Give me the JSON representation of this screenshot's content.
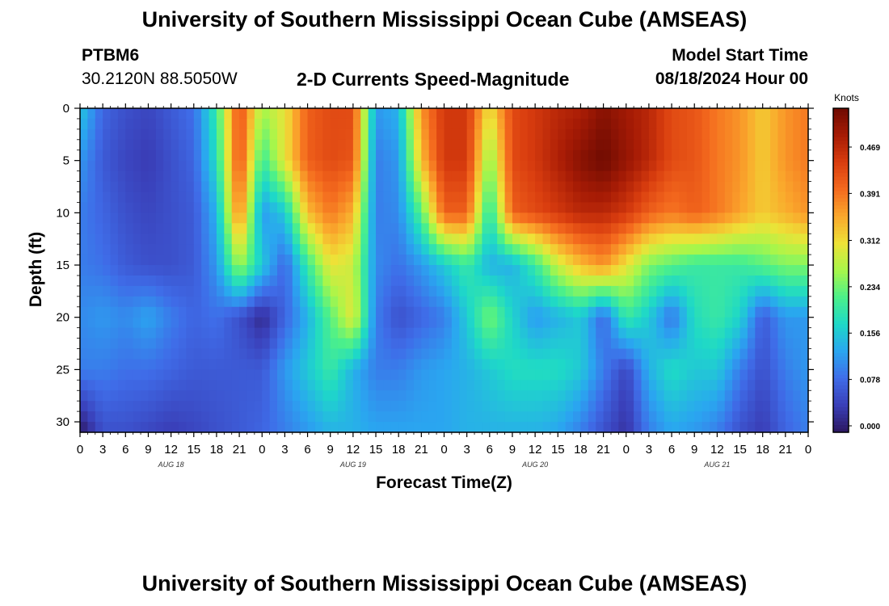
{
  "page": {
    "title": "University of Southern Mississippi Ocean Cube (AMSEAS)",
    "bottom_title": "University of Southern Mississippi Ocean Cube (AMSEAS)",
    "station": "PTBM6",
    "coordinates": "30.2120N  88.5050W",
    "subtitle": "2-D Currents Speed-Magnitude",
    "model_start_label": "Model Start Time",
    "model_start_value": "08/18/2024 Hour 00"
  },
  "chart_data": {
    "type": "heatmap",
    "title": "2-D Currents Speed-Magnitude",
    "xlabel": "Forecast Time(Z)",
    "ylabel": "Depth (ft)",
    "xlim": [
      0,
      96
    ],
    "ylim": [
      31,
      0
    ],
    "x_tick_hours": [
      0,
      3,
      6,
      9,
      12,
      15,
      18,
      21,
      24,
      27,
      30,
      33,
      36,
      39,
      42,
      45,
      48,
      51,
      54,
      57,
      60,
      63,
      66,
      69,
      72,
      75,
      78,
      81,
      84,
      87,
      90,
      93,
      96
    ],
    "x_tick_labels": [
      "0",
      "3",
      "6",
      "9",
      "12",
      "15",
      "18",
      "21",
      "0",
      "3",
      "6",
      "9",
      "12",
      "15",
      "18",
      "21",
      "0",
      "3",
      "6",
      "9",
      "12",
      "15",
      "18",
      "21",
      "0",
      "3",
      "6",
      "9",
      "12",
      "15",
      "18",
      "21",
      "0"
    ],
    "day_labels": [
      {
        "hour": 12,
        "label": "AUG 18"
      },
      {
        "hour": 36,
        "label": "AUG 19"
      },
      {
        "hour": 60,
        "label": "AUG 20"
      },
      {
        "hour": 84,
        "label": "AUG 21"
      }
    ],
    "y_ticks": [
      0,
      5,
      10,
      15,
      20,
      25,
      30
    ],
    "colorbar": {
      "unit": "Knots",
      "min": 0.0,
      "max": 0.52,
      "tick_values": [
        0.0,
        0.078,
        0.156,
        0.234,
        0.312,
        0.391,
        0.469
      ],
      "tick_labels": [
        "0.000",
        "0.078",
        "0.156",
        "0.234",
        "0.312",
        "0.391",
        "0.469"
      ],
      "colors": [
        "#2c1760",
        "#3a3fb8",
        "#3f6ce8",
        "#2aa6f0",
        "#1ed8c8",
        "#4cf08a",
        "#a8f64a",
        "#eee237",
        "#faa72c",
        "#f46a1e",
        "#d93d0f",
        "#a61b05",
        "#6e0b02"
      ]
    },
    "depths": [
      0,
      5,
      10,
      15,
      20,
      25,
      31
    ],
    "hours": [
      0,
      3,
      6,
      9,
      12,
      15,
      18,
      21,
      24,
      27,
      30,
      33,
      36,
      39,
      42,
      45,
      48,
      51,
      54,
      57,
      60,
      63,
      66,
      69,
      72,
      75,
      78,
      81,
      84,
      87,
      90,
      93,
      96
    ],
    "speed_knots": [
      [
        0.16,
        0.08,
        0.06,
        0.05,
        0.07,
        0.09,
        0.2,
        0.42,
        0.26,
        0.3,
        0.4,
        0.42,
        0.42,
        0.12,
        0.14,
        0.36,
        0.44,
        0.44,
        0.3,
        0.42,
        0.44,
        0.46,
        0.47,
        0.5,
        0.48,
        0.46,
        0.42,
        0.41,
        0.38,
        0.36,
        0.32,
        0.36,
        0.38
      ],
      [
        0.12,
        0.07,
        0.05,
        0.04,
        0.06,
        0.08,
        0.18,
        0.42,
        0.2,
        0.3,
        0.4,
        0.42,
        0.41,
        0.1,
        0.12,
        0.33,
        0.44,
        0.44,
        0.24,
        0.42,
        0.44,
        0.47,
        0.5,
        0.52,
        0.49,
        0.46,
        0.42,
        0.41,
        0.38,
        0.36,
        0.32,
        0.36,
        0.38
      ],
      [
        0.1,
        0.08,
        0.06,
        0.05,
        0.06,
        0.07,
        0.14,
        0.38,
        0.12,
        0.16,
        0.33,
        0.38,
        0.34,
        0.1,
        0.11,
        0.22,
        0.4,
        0.4,
        0.18,
        0.4,
        0.42,
        0.44,
        0.46,
        0.46,
        0.44,
        0.4,
        0.38,
        0.4,
        0.38,
        0.35,
        0.32,
        0.34,
        0.36
      ],
      [
        0.1,
        0.09,
        0.07,
        0.06,
        0.06,
        0.07,
        0.12,
        0.26,
        0.16,
        0.08,
        0.2,
        0.3,
        0.28,
        0.11,
        0.09,
        0.12,
        0.16,
        0.2,
        0.14,
        0.14,
        0.2,
        0.28,
        0.33,
        0.36,
        0.3,
        0.24,
        0.22,
        0.2,
        0.2,
        0.2,
        0.22,
        0.24,
        0.24
      ],
      [
        0.11,
        0.12,
        0.11,
        0.13,
        0.1,
        0.08,
        0.09,
        0.06,
        0.02,
        0.08,
        0.14,
        0.22,
        0.3,
        0.1,
        0.06,
        0.08,
        0.1,
        0.16,
        0.24,
        0.17,
        0.12,
        0.14,
        0.16,
        0.08,
        0.2,
        0.16,
        0.09,
        0.18,
        0.2,
        0.17,
        0.07,
        0.12,
        0.12
      ],
      [
        0.1,
        0.1,
        0.09,
        0.09,
        0.08,
        0.07,
        0.07,
        0.07,
        0.07,
        0.12,
        0.16,
        0.2,
        0.14,
        0.1,
        0.1,
        0.12,
        0.13,
        0.14,
        0.16,
        0.18,
        0.18,
        0.18,
        0.16,
        0.1,
        0.05,
        0.14,
        0.18,
        0.16,
        0.16,
        0.1,
        0.06,
        0.1,
        0.12
      ],
      [
        0.0,
        0.06,
        0.06,
        0.05,
        0.04,
        0.05,
        0.06,
        0.07,
        0.08,
        0.1,
        0.12,
        0.14,
        0.14,
        0.13,
        0.13,
        0.13,
        0.13,
        0.14,
        0.14,
        0.14,
        0.14,
        0.13,
        0.1,
        0.06,
        0.03,
        0.1,
        0.13,
        0.12,
        0.1,
        0.06,
        0.04,
        0.08,
        0.1
      ]
    ]
  }
}
